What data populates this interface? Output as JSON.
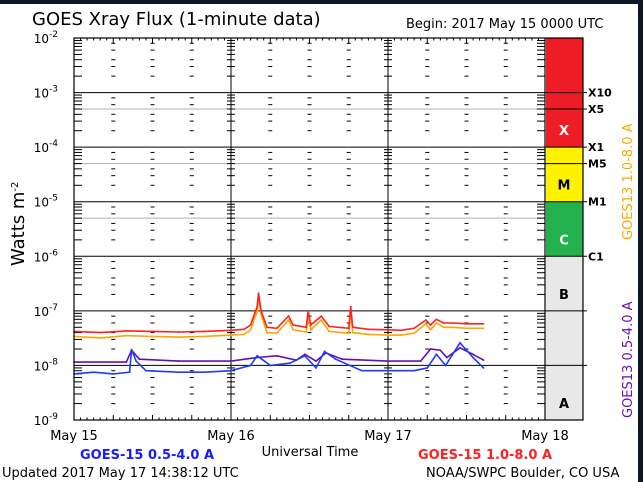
{
  "chart_data": {
    "type": "line",
    "title": "GOES Xray Flux (1-minute data)",
    "begin_label": "Begin:  2017 May 15 0000 UTC",
    "xlabel": "Universal Time",
    "ylabel": "Watts m",
    "ylabel_exp": "-2",
    "yscale": "log",
    "ylim": [
      1e-09,
      0.01
    ],
    "xlim_hours": [
      0,
      72
    ],
    "x_unit": "hours since 2017 May 15 0000 UTC",
    "x_ticks": [
      {
        "hour": 0,
        "label": "May 15"
      },
      {
        "hour": 24,
        "label": "May 16"
      },
      {
        "hour": 48,
        "label": "May 17"
      },
      {
        "hour": 72,
        "label": "May 18"
      }
    ],
    "y_ticks": [
      {
        "exp": -2,
        "base": "10",
        "sup": "-2"
      },
      {
        "exp": -3,
        "base": "10",
        "sup": "-3"
      },
      {
        "exp": -4,
        "base": "10",
        "sup": "-4"
      },
      {
        "exp": -5,
        "base": "10",
        "sup": "-5"
      },
      {
        "exp": -6,
        "base": "10",
        "sup": "-6"
      },
      {
        "exp": -7,
        "base": "10",
        "sup": "-7"
      },
      {
        "exp": -8,
        "base": "10",
        "sup": "-8"
      },
      {
        "exp": -9,
        "base": "10",
        "sup": "-9"
      }
    ],
    "flare_levels": [
      {
        "label": "X10",
        "value": 0.001
      },
      {
        "label": "X5",
        "value": 0.0005
      },
      {
        "label": "X1",
        "value": 0.0001
      },
      {
        "label": "M5",
        "value": 5e-05
      },
      {
        "label": "M1",
        "value": 1e-05
      },
      {
        "label": "C1",
        "value": 1e-06
      }
    ],
    "class_bands": [
      {
        "label": "X",
        "from": 0.0001,
        "to": 0.01,
        "color": "#ee1c25",
        "text_color": "#ffffff"
      },
      {
        "label": "M",
        "from": 1e-05,
        "to": 0.0001,
        "color": "#fff200",
        "text_color": "#000000"
      },
      {
        "label": "C",
        "from": 1e-06,
        "to": 1e-05,
        "color": "#22b14c",
        "text_color": "#ffffff"
      },
      {
        "label": "B",
        "from": 1e-07,
        "to": 1e-06,
        "color": "#e8e8e8",
        "text_color": "#000000"
      },
      {
        "label": "A",
        "from": 1e-09,
        "to": 1e-07,
        "color": "#e8e8e8",
        "text_color": "#000000"
      }
    ],
    "series": [
      {
        "name": "GOES13 1.0-8.0 A",
        "color": "#ffa500",
        "x": [
          0,
          4,
          8,
          12,
          16,
          20,
          24,
          26,
          27,
          28,
          28.2,
          28.6,
          29.5,
          31,
          32.8,
          33.5,
          35.5,
          35.8,
          36.2,
          37.8,
          39,
          42,
          42.3,
          42.6,
          45,
          48,
          50,
          52,
          53.8,
          54.5,
          55.4,
          56.5,
          58,
          60,
          62.6
        ],
        "y": [
          3.4e-08,
          3.2e-08,
          3.5e-08,
          3.4e-08,
          3.3e-08,
          3.4e-08,
          3.6e-08,
          3.7e-08,
          4.5e-08,
          1e-07,
          1.8e-07,
          8.5e-08,
          4e-08,
          3.9e-08,
          6.8e-08,
          4.5e-08,
          4.1e-08,
          8.5e-08,
          4.5e-08,
          6.8e-08,
          4.2e-08,
          3.9e-08,
          1e-07,
          4e-08,
          3.7e-08,
          3.6e-08,
          3.6e-08,
          3.9e-08,
          5.8e-08,
          4.5e-08,
          6e-08,
          5e-08,
          5e-08,
          4.8e-08,
          4.8e-08
        ]
      },
      {
        "name": "GOES-15 1.0-8.0 A",
        "color": "#ff2020",
        "x": [
          0,
          4,
          8,
          12,
          16,
          20,
          24,
          26,
          27,
          28,
          28.2,
          28.6,
          29.5,
          31,
          32.8,
          33.5,
          35.5,
          35.8,
          36.2,
          37.8,
          39,
          42,
          42.3,
          42.6,
          45,
          48,
          50,
          52,
          53.8,
          54.5,
          55.4,
          56.5,
          58,
          60,
          62.6
        ],
        "y": [
          4.2e-08,
          4e-08,
          4.3e-08,
          4.2e-08,
          4.1e-08,
          4.2e-08,
          4.4e-08,
          4.6e-08,
          5.5e-08,
          1.2e-07,
          2.1e-07,
          1e-07,
          5e-08,
          4.8e-08,
          8e-08,
          5.5e-08,
          5e-08,
          1e-07,
          5.5e-08,
          8e-08,
          5.2e-08,
          4.8e-08,
          1.2e-07,
          5e-08,
          4.6e-08,
          4.5e-08,
          4.4e-08,
          4.8e-08,
          6.8e-08,
          5.5e-08,
          7e-08,
          6e-08,
          6e-08,
          5.8e-08,
          5.8e-08
        ]
      },
      {
        "name": "GOES13 0.5-4.0 A",
        "color": "#6a0dad",
        "x": [
          0,
          8,
          8.8,
          10,
          16,
          24,
          28,
          31,
          34,
          35.3,
          37,
          38.5,
          41,
          48,
          53,
          54.5,
          56,
          57,
          59,
          61,
          62.6
        ],
        "y": [
          1.15e-08,
          1.15e-08,
          1.9e-08,
          1.3e-08,
          1.2e-08,
          1.2e-08,
          1.4e-08,
          1.5e-08,
          1.25e-08,
          1.6e-08,
          1.2e-08,
          1.7e-08,
          1.3e-08,
          1.2e-08,
          1.2e-08,
          2e-08,
          1.9e-08,
          1.4e-08,
          2.1e-08,
          1.6e-08,
          1.25e-08
        ]
      },
      {
        "name": "GOES-15 0.5-4.0 A",
        "color": "#1a3cff",
        "x": [
          0,
          3,
          6,
          8.5,
          8.8,
          9.5,
          11,
          16,
          20,
          24,
          27,
          28,
          30,
          33,
          35.3,
          37,
          38.3,
          40,
          44,
          48,
          52,
          54,
          55.4,
          56.8,
          59,
          61,
          62.6
        ],
        "y": [
          7e-09,
          7.5e-09,
          7e-09,
          7.5e-09,
          1.95e-08,
          1.2e-08,
          8e-09,
          7.5e-09,
          7.5e-09,
          8e-09,
          1e-08,
          1.5e-08,
          1e-08,
          1.1e-08,
          1.5e-08,
          9e-09,
          1.8e-08,
          1.3e-08,
          8e-09,
          8e-09,
          8e-09,
          9e-09,
          1.6e-08,
          1e-08,
          2.6e-08,
          1.4e-08,
          9e-09
        ]
      }
    ],
    "legend": {
      "bottom_left": "GOES-15 0.5-4.0 A",
      "bottom_right": "GOES-15 1.0-8.0 A",
      "right_upper": "GOES13 1.0-8.0 A",
      "right_lower": "GOES13 0.5-4.0 A"
    }
  },
  "footer": {
    "updated": "Updated 2017 May 17 14:38:12 UTC",
    "credit": "NOAA/SWPC Boulder, CO USA"
  }
}
